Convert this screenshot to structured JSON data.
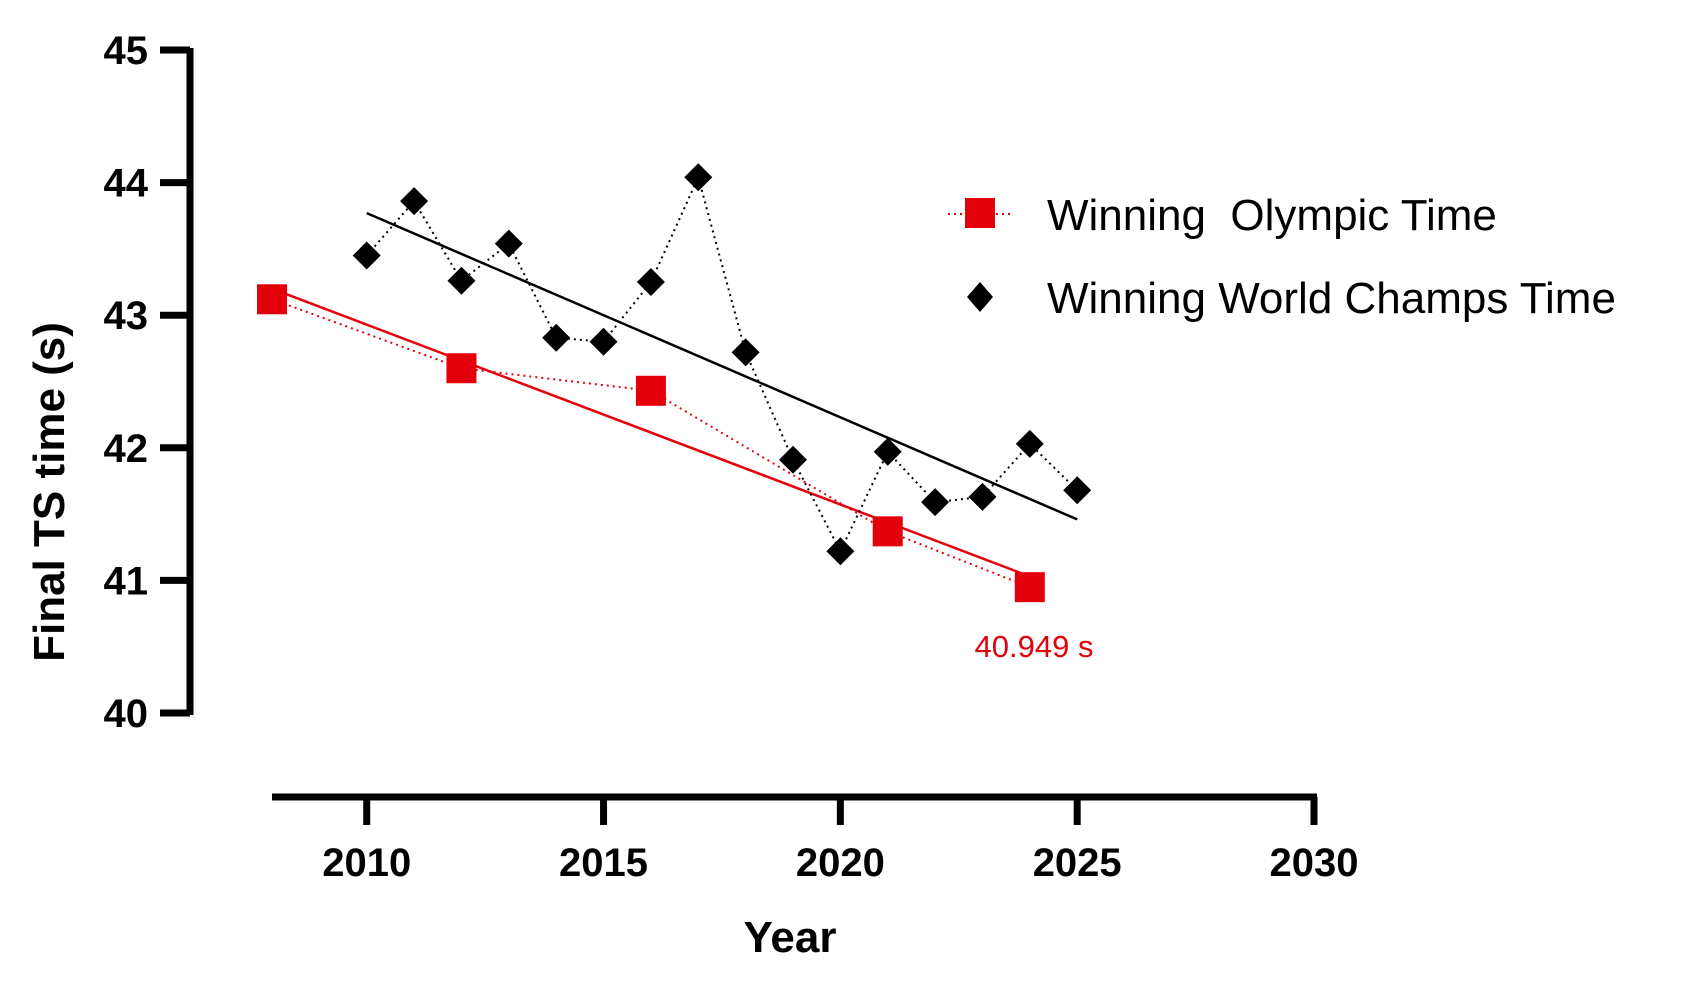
{
  "chart_data": {
    "type": "scatter",
    "title": "",
    "xlabel": "Year",
    "ylabel": "Final TS time (s)",
    "xlim": [
      2008,
      2030
    ],
    "ylim": [
      40,
      45
    ],
    "xticks": [
      2010,
      2015,
      2020,
      2025,
      2030
    ],
    "yticks": [
      40,
      41,
      42,
      43,
      44,
      45
    ],
    "grid": false,
    "legend_position": "top-right",
    "series": [
      {
        "name": "Winning  Olympic Time",
        "marker": "square",
        "color": "#e3000b",
        "line": "dotted",
        "x": [
          2008,
          2012,
          2016,
          2021,
          2024
        ],
        "y": [
          43.12,
          42.6,
          42.43,
          41.37,
          40.949
        ],
        "trendline": {
          "x": [
            2008,
            2024
          ],
          "y": [
            43.2,
            41.03
          ]
        }
      },
      {
        "name": "Winning World Champs Time",
        "marker": "diamond",
        "color": "#000000",
        "line": "dotted",
        "x": [
          2010,
          2011,
          2012,
          2013,
          2014,
          2015,
          2016,
          2017,
          2018,
          2019,
          2020,
          2021,
          2022,
          2023,
          2024,
          2025
        ],
        "y": [
          43.45,
          43.86,
          43.26,
          43.54,
          42.83,
          42.8,
          43.25,
          44.04,
          42.72,
          41.91,
          41.22,
          41.97,
          41.59,
          41.63,
          42.03,
          41.68
        ],
        "trendline": {
          "x": [
            2010,
            2025
          ],
          "y": [
            43.77,
            41.46
          ]
        }
      }
    ],
    "annotations": [
      {
        "text": "40.949 s",
        "x": 2024,
        "y": 40.949,
        "color": "#e3000b"
      }
    ]
  }
}
